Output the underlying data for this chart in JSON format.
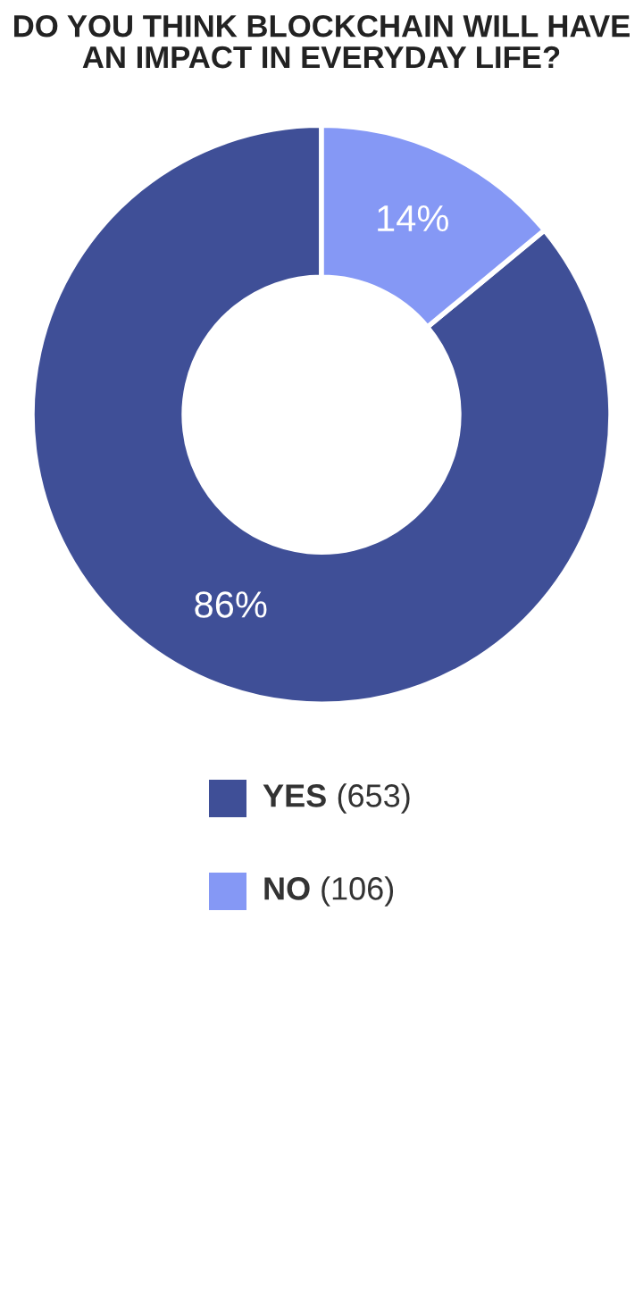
{
  "chart_data": {
    "type": "donut",
    "title": "DO YOU THINK BLOCKCHAIN WILL HAVE\nAN IMPACT IN EVERYDAY LIFE?",
    "categories": [
      "YES",
      "NO"
    ],
    "values": [
      86,
      14
    ],
    "annotations": [
      "(653)",
      "(106)"
    ],
    "value_labels": [
      "86%",
      "14%"
    ],
    "colors": [
      "#3f4f97",
      "#8598f5"
    ],
    "legend": "bottom"
  }
}
